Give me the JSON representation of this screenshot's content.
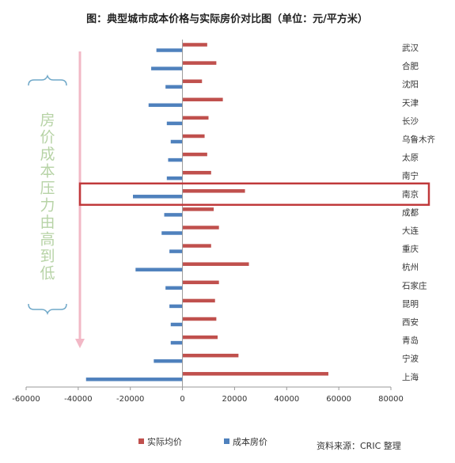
{
  "chart_data": {
    "type": "bar",
    "orientation": "horizontal",
    "title": "图：典型城市成本价格与实际房价对比图（单位：元/平方米）",
    "categories": [
      "武汉",
      "合肥",
      "沈阳",
      "天津",
      "长沙",
      "乌鲁木齐",
      "太原",
      "南宁",
      "南京",
      "成都",
      "大连",
      "重庆",
      "杭州",
      "石家庄",
      "昆明",
      "西安",
      "青岛",
      "宁波",
      "上海"
    ],
    "series": [
      {
        "name": "实际均价",
        "color": "#c0504d",
        "values": [
          9500,
          13000,
          7500,
          15500,
          10000,
          8500,
          9500,
          11000,
          24000,
          12000,
          14000,
          11000,
          25500,
          14000,
          12500,
          13000,
          13500,
          21500,
          56000
        ]
      },
      {
        "name": "成本房价",
        "color": "#4f81bd",
        "values": [
          -10000,
          -12000,
          -6500,
          -13000,
          -6000,
          -4500,
          -5500,
          -6000,
          -19000,
          -7000,
          -8000,
          -5000,
          -18000,
          -6500,
          -5000,
          -4500,
          -4500,
          -11000,
          -37000
        ]
      }
    ],
    "xlim": [
      -60000,
      80000
    ],
    "xticks": [
      -60000,
      -40000,
      -20000,
      0,
      20000,
      40000,
      60000,
      80000
    ],
    "highlight_category": "南京",
    "legend_position": "bottom",
    "grid": false,
    "annotation_text": [
      "房",
      "价",
      "成",
      "本",
      "压",
      "力",
      "由",
      "高",
      "到",
      "低"
    ]
  },
  "source_note": "资料来源：CRIC 整理",
  "colors": {
    "highlight_box": "#c0393b",
    "arrow": "#f2b8c6",
    "brace": "#6fa8c8",
    "annotation": "#b7d3a6",
    "axis": "#999999"
  }
}
